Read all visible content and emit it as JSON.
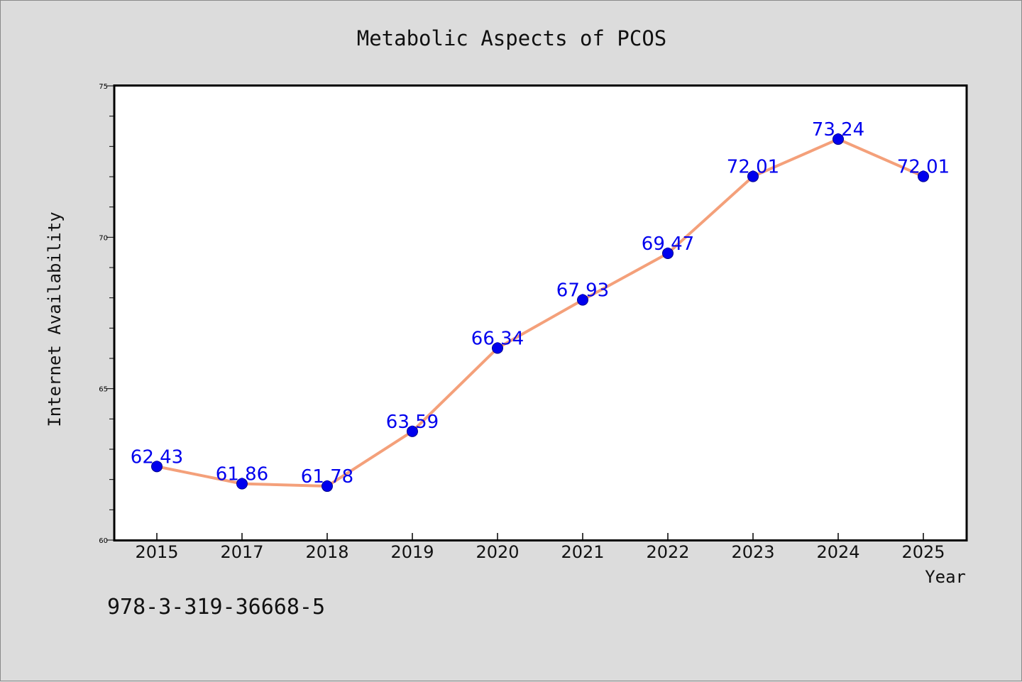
{
  "chart_data": {
    "type": "line",
    "title": "Metabolic Aspects of PCOS",
    "xlabel": "Year",
    "ylabel": "Internet Availability",
    "categories": [
      "2015",
      "2017",
      "2018",
      "2019",
      "2020",
      "2021",
      "2022",
      "2023",
      "2024",
      "2025"
    ],
    "series": [
      {
        "values": [
          62.43,
          61.86,
          61.78,
          63.59,
          66.34,
          67.93,
          69.47,
          72.01,
          73.24,
          72.01
        ]
      }
    ],
    "ylim": [
      60,
      75
    ],
    "yticks": [
      "60",
      "65",
      "70",
      "75"
    ],
    "grid": false,
    "line_color": "#f4a07a",
    "marker_color": "#0000ee",
    "label_color": "#0000ee"
  },
  "footer_text": "978-3-319-36668-5"
}
